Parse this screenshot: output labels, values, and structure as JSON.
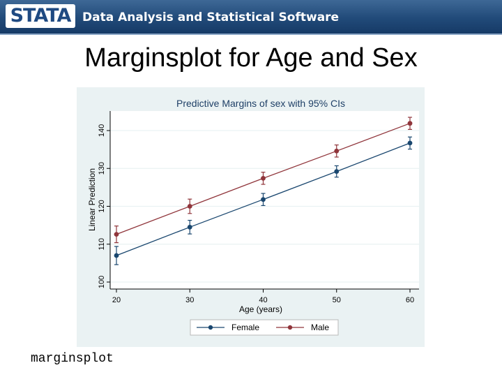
{
  "header": {
    "logo_text": "STATA",
    "tagline": "Data Analysis and Statistical Software",
    "colors": {
      "banner": "#214a79",
      "logo_text": "#1f4a82"
    }
  },
  "slide": {
    "title": "Marginsplot for Age and Sex",
    "command": "marginsplot"
  },
  "chart_data": {
    "type": "line",
    "title": "Predictive Margins of sex with 95% CIs",
    "xlabel": "Age (years)",
    "ylabel": "Linear Prediction",
    "x": [
      20,
      30,
      40,
      50,
      60
    ],
    "x_ticks": [
      "20",
      "30",
      "40",
      "50",
      "60"
    ],
    "y_ticks": [
      "100",
      "110",
      "120",
      "130",
      "140"
    ],
    "xlim": [
      20,
      60
    ],
    "ylim": [
      100,
      140
    ],
    "grid": "horizontal",
    "legend_position": "bottom",
    "series": [
      {
        "name": "Female",
        "color": "#1a476f",
        "values": [
          107,
          114.5,
          121.8,
          129.2,
          136.7
        ],
        "ci_low": [
          104.6,
          112.7,
          120.2,
          127.7,
          135.1
        ],
        "ci_high": [
          109.4,
          116.3,
          123.4,
          130.7,
          138.3
        ]
      },
      {
        "name": "Male",
        "color": "#90353b",
        "values": [
          112.6,
          120,
          127.4,
          134.6,
          141.9
        ],
        "ci_low": [
          110.4,
          118.1,
          125.8,
          133.0,
          140.3
        ],
        "ci_high": [
          114.8,
          121.9,
          129.0,
          136.2,
          143.5
        ]
      }
    ]
  }
}
